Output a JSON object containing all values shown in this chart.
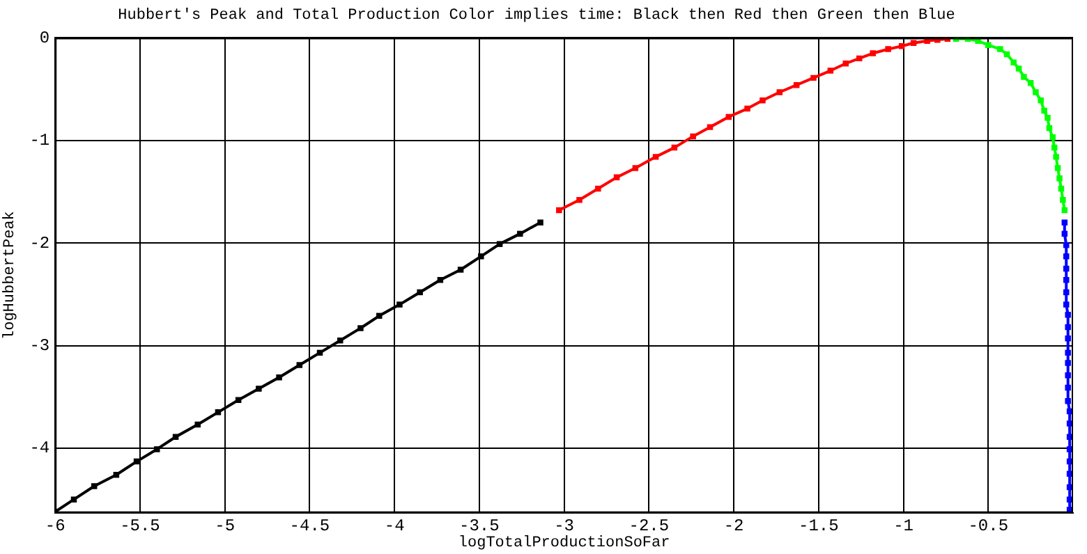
{
  "chart_data": {
    "type": "line",
    "title": "Hubbert's Peak and Total Production Color implies time: Black then Red then Green then Blue",
    "xlabel": "logTotalProductionSoFar",
    "ylabel": "logHubbertPeak",
    "xlim": [
      -6,
      0
    ],
    "ylim": [
      -4.63,
      0
    ],
    "xticks": [
      -6,
      -5.5,
      -5,
      -4.5,
      -4,
      -3.5,
      -3,
      -2.5,
      -2,
      -1.5,
      -1,
      -0.5
    ],
    "yticks": [
      -4,
      -3,
      -2,
      -1,
      0
    ],
    "grid": true,
    "legend": false,
    "marker": "square",
    "line_style": "solid",
    "series": [
      {
        "color": "#000000",
        "x": [
          -6.0,
          -5.89,
          -5.77,
          -5.64,
          -5.52,
          -5.4,
          -5.29,
          -5.16,
          -5.04,
          -4.92,
          -4.8,
          -4.68,
          -4.56,
          -4.44,
          -4.32,
          -4.2,
          -4.09,
          -3.97,
          -3.85,
          -3.73,
          -3.61,
          -3.49,
          -3.38,
          -3.26,
          -3.14
        ],
        "values": [
          -4.62,
          -4.5,
          -4.37,
          -4.26,
          -4.13,
          -4.01,
          -3.89,
          -3.77,
          -3.65,
          -3.53,
          -3.42,
          -3.31,
          -3.19,
          -3.07,
          -2.95,
          -2.83,
          -2.71,
          -2.6,
          -2.48,
          -2.36,
          -2.26,
          -2.13,
          -2.01,
          -1.91,
          -1.8
        ]
      },
      {
        "color": "#ff0000",
        "x": [
          -3.03,
          -2.91,
          -2.8,
          -2.69,
          -2.58,
          -2.46,
          -2.35,
          -2.24,
          -2.14,
          -2.03,
          -1.92,
          -1.83,
          -1.73,
          -1.63,
          -1.53,
          -1.43,
          -1.34,
          -1.26,
          -1.18,
          -1.09,
          -1.01,
          -0.94,
          -0.86,
          -0.8,
          -0.74
        ],
        "values": [
          -1.68,
          -1.58,
          -1.47,
          -1.36,
          -1.27,
          -1.16,
          -1.07,
          -0.96,
          -0.87,
          -0.77,
          -0.69,
          -0.61,
          -0.53,
          -0.46,
          -0.39,
          -0.32,
          -0.25,
          -0.2,
          -0.15,
          -0.11,
          -0.08,
          -0.05,
          -0.03,
          -0.02,
          -0.01
        ]
      },
      {
        "color": "#00ff00",
        "x": [
          -0.69,
          -0.62,
          -0.56,
          -0.5,
          -0.43,
          -0.39,
          -0.35,
          -0.32,
          -0.29,
          -0.25,
          -0.22,
          -0.19,
          -0.17,
          -0.15,
          -0.14,
          -0.12,
          -0.11,
          -0.1,
          -0.09,
          -0.08,
          -0.07,
          -0.06,
          -0.05
        ],
        "values": [
          -0.01,
          -0.01,
          -0.03,
          -0.07,
          -0.11,
          -0.16,
          -0.24,
          -0.3,
          -0.38,
          -0.44,
          -0.53,
          -0.61,
          -0.71,
          -0.78,
          -0.88,
          -0.97,
          -1.07,
          -1.16,
          -1.27,
          -1.37,
          -1.47,
          -1.58,
          -1.68
        ]
      },
      {
        "color": "#0000ff",
        "x": [
          -0.05,
          -0.05,
          -0.04,
          -0.04,
          -0.04,
          -0.04,
          -0.04,
          -0.04,
          -0.03,
          -0.03,
          -0.03,
          -0.03,
          -0.03,
          -0.03,
          -0.03,
          -0.03,
          -0.02,
          -0.02,
          -0.02,
          -0.02,
          -0.02,
          -0.02,
          -0.02,
          -0.02,
          -0.02
        ],
        "values": [
          -1.8,
          -1.91,
          -2.02,
          -2.13,
          -2.25,
          -2.36,
          -2.48,
          -2.6,
          -2.7,
          -2.82,
          -2.93,
          -3.07,
          -3.17,
          -3.29,
          -3.41,
          -3.54,
          -3.64,
          -3.76,
          -3.89,
          -4.01,
          -4.13,
          -4.25,
          -4.38,
          -4.5,
          -4.6
        ]
      }
    ]
  }
}
